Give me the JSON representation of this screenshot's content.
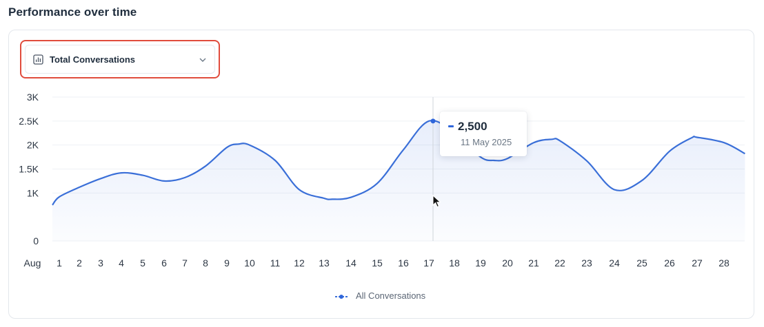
{
  "page": {
    "title": "Performance over time"
  },
  "metric_selector": {
    "label": "Total Conversations",
    "icon": "bar-chart-icon",
    "chevron": "chevron-down-icon"
  },
  "tooltip": {
    "value": "2,500",
    "date": "11 May 2025"
  },
  "colors": {
    "line": "#3a6fd8",
    "point": "#2f66db",
    "highlight": "#e04b3c"
  },
  "chart_data": {
    "type": "area",
    "y_ticks": [
      "0",
      "1K",
      "1.5K",
      "2K",
      "2.5K",
      "3K"
    ],
    "y_tick_values": [
      0,
      1000,
      1500,
      2000,
      2500,
      3000
    ],
    "x_ticks": [
      "Aug",
      "1",
      "2",
      "3",
      "4",
      "5",
      "6",
      "7",
      "8",
      "9",
      "10",
      "11",
      "12",
      "13",
      "14",
      "15",
      "16",
      "17",
      "18",
      "19",
      "20",
      "21",
      "22",
      "23",
      "24",
      "25",
      "26",
      "27",
      "28"
    ],
    "grid": true,
    "legend": "bottom-center",
    "series": [
      {
        "name": "All Conversations",
        "x": [
          "Aug",
          "1",
          "2",
          "3",
          "4",
          "5",
          "6",
          "7",
          "8",
          "9",
          "9.5",
          "10",
          "11",
          "12",
          "13",
          "13.3",
          "14",
          "15",
          "16",
          "17",
          "18",
          "19",
          "19.5",
          "20",
          "21",
          "21.7",
          "22",
          "23",
          "24",
          "25",
          "26",
          "26.8",
          "27",
          "28",
          "28.8"
        ],
        "values": [
          750,
          920,
          1120,
          1300,
          1420,
          1370,
          1250,
          1320,
          1560,
          1950,
          2020,
          2000,
          1680,
          1070,
          890,
          870,
          910,
          1200,
          1900,
          2500,
          2250,
          1750,
          1680,
          1720,
          2050,
          2120,
          2090,
          1670,
          1070,
          1260,
          1870,
          2150,
          2160,
          2050,
          1820
        ]
      }
    ],
    "highlight_point": {
      "x": "17",
      "y": 2500
    }
  }
}
